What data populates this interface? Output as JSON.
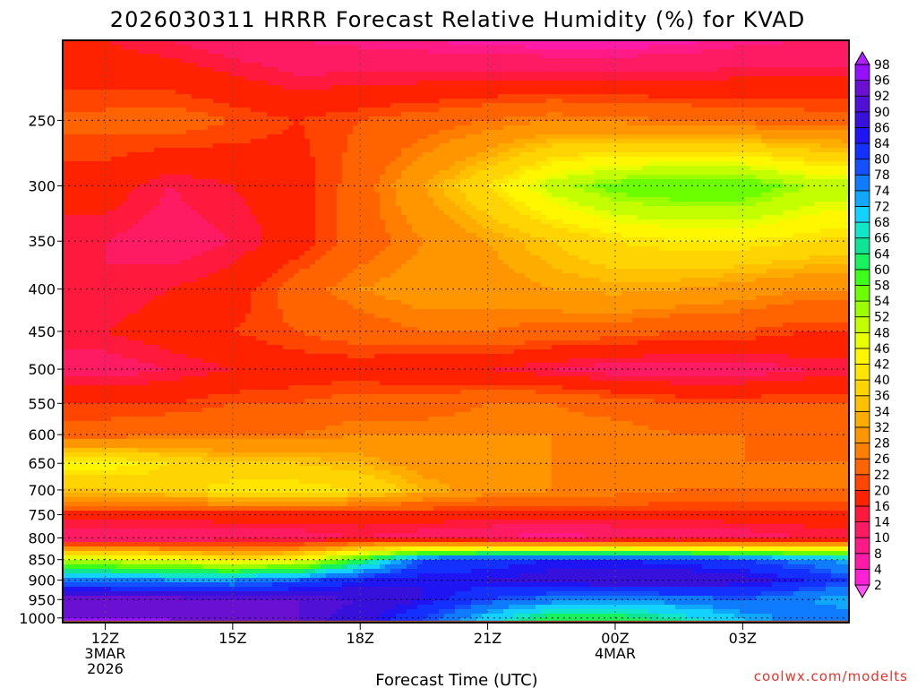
{
  "chart_data": {
    "type": "heatmap",
    "title": "2026030311 HRRR Forecast Relative Humidity (%) for KVAD",
    "xlabel": "Forecast Time (UTC)",
    "ylabel": "",
    "x_hours": [
      0,
      1.5,
      3,
      4.5,
      6,
      7.5,
      9,
      10.5,
      12,
      13.5,
      15,
      16.5,
      18
    ],
    "x_range_hours": [
      -1,
      17.5
    ],
    "x_ticks": [
      {
        "hour": 0,
        "lines": [
          "12Z",
          "3MAR",
          "2026"
        ]
      },
      {
        "hour": 3,
        "lines": [
          "15Z"
        ]
      },
      {
        "hour": 6,
        "lines": [
          "18Z"
        ]
      },
      {
        "hour": 9,
        "lines": [
          "21Z"
        ]
      },
      {
        "hour": 12,
        "lines": [
          "00Z",
          "4MAR"
        ]
      },
      {
        "hour": 15,
        "lines": [
          "03Z"
        ]
      }
    ],
    "y_levels_hpa": [
      200,
      250,
      300,
      350,
      400,
      450,
      500,
      550,
      600,
      650,
      700,
      750,
      800,
      850,
      900,
      950,
      1000
    ],
    "y_range_hpa": [
      200,
      1013
    ],
    "y_tick_labels": [
      "250",
      "300",
      "350",
      "400",
      "450",
      "500",
      "550",
      "600",
      "650",
      "700",
      "750",
      "800",
      "850",
      "900",
      "950",
      "1000"
    ],
    "values": [
      [
        16,
        14,
        12,
        10,
        9,
        8,
        7,
        6,
        6,
        7,
        9,
        10,
        10
      ],
      [
        23,
        24,
        22,
        20,
        22,
        24,
        26,
        28,
        27,
        26,
        25,
        24,
        24
      ],
      [
        18,
        14,
        16,
        18,
        24,
        32,
        40,
        50,
        56,
        58,
        58,
        52,
        50
      ],
      [
        14,
        12,
        14,
        18,
        24,
        28,
        32,
        36,
        40,
        42,
        42,
        40,
        38
      ],
      [
        14,
        16,
        18,
        24,
        28,
        30,
        30,
        32,
        33,
        32,
        30,
        28,
        28
      ],
      [
        16,
        18,
        20,
        22,
        24,
        26,
        26,
        24,
        24,
        22,
        22,
        20,
        20
      ],
      [
        12,
        14,
        16,
        18,
        18,
        16,
        16,
        14,
        12,
        12,
        12,
        14,
        14
      ],
      [
        20,
        20,
        22,
        22,
        24,
        24,
        26,
        26,
        24,
        22,
        22,
        22,
        22
      ],
      [
        24,
        26,
        26,
        26,
        28,
        28,
        28,
        28,
        28,
        26,
        26,
        24,
        24
      ],
      [
        44,
        40,
        36,
        36,
        34,
        30,
        28,
        28,
        26,
        26,
        26,
        26,
        26
      ],
      [
        36,
        38,
        42,
        42,
        40,
        34,
        30,
        28,
        28,
        26,
        26,
        26,
        26
      ],
      [
        18,
        18,
        18,
        18,
        18,
        18,
        18,
        18,
        18,
        18,
        18,
        18,
        18
      ],
      [
        10,
        10,
        12,
        12,
        14,
        12,
        10,
        8,
        10,
        10,
        12,
        14,
        14
      ],
      [
        50,
        46,
        42,
        44,
        60,
        80,
        82,
        84,
        84,
        82,
        80,
        76,
        70
      ],
      [
        76,
        74,
        74,
        78,
        84,
        86,
        86,
        88,
        90,
        90,
        88,
        84,
        78
      ],
      [
        94,
        94,
        92,
        92,
        90,
        86,
        80,
        76,
        74,
        76,
        78,
        74,
        70
      ],
      [
        96,
        96,
        94,
        92,
        88,
        80,
        70,
        62,
        62,
        66,
        72,
        76,
        78
      ]
    ],
    "colorbar": {
      "labels": [
        "2",
        "4",
        "8",
        "10",
        "14",
        "16",
        "20",
        "22",
        "26",
        "28",
        "32",
        "34",
        "36",
        "40",
        "42",
        "46",
        "48",
        "52",
        "54",
        "58",
        "60",
        "64",
        "66",
        "68",
        "72",
        "74",
        "78",
        "80",
        "84",
        "86",
        "90",
        "92",
        "96",
        "98"
      ],
      "colors": [
        "#ff4ff6",
        "#ff1fd4",
        "#ff1aa8",
        "#ff1a86",
        "#ff1a64",
        "#ff1a3d",
        "#ff2200",
        "#ff4500",
        "#ff6400",
        "#ff7e00",
        "#ff9600",
        "#ffac00",
        "#ffc000",
        "#ffd400",
        "#ffe600",
        "#fff700",
        "#e8ff00",
        "#c4ff00",
        "#9cff00",
        "#6cff00",
        "#3cff1a",
        "#18f25c",
        "#0fe495",
        "#12e6c8",
        "#14d2ff",
        "#10a8ff",
        "#0f7cff",
        "#1450ff",
        "#1430ff",
        "#1f14f2",
        "#3810dc",
        "#5010d6",
        "#6a10d2",
        "#9410ff",
        "#b020ff"
      ]
    },
    "ground_color": "#a0522d",
    "grid": "dotted"
  },
  "credit": "coolwx.com/modelts"
}
